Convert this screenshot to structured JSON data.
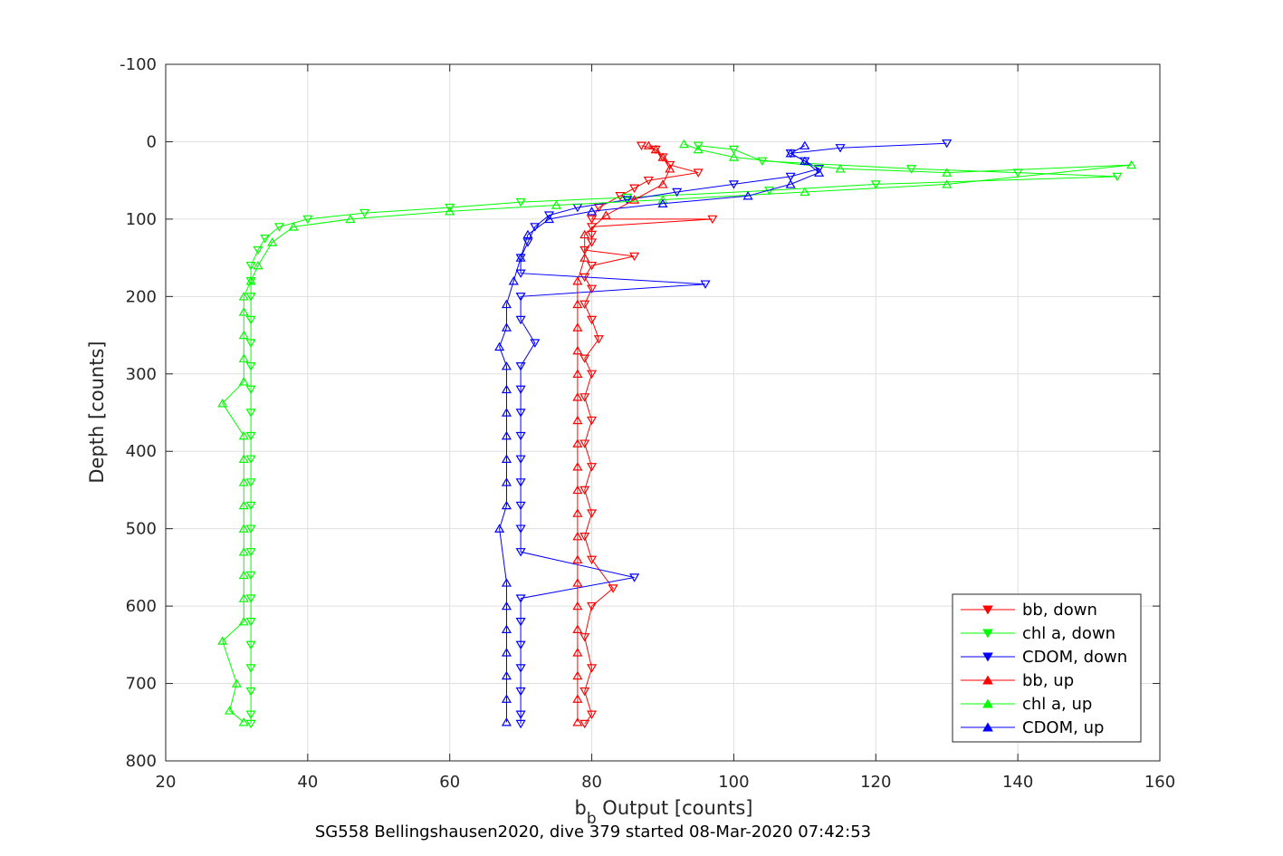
{
  "chart_data": {
    "type": "scatter",
    "xlabel_main": "b",
    "xlabel_sub": "b",
    "xlabel_rest": " Output [counts]",
    "ylabel": "Depth [counts]",
    "caption": "SG558 Bellingshausen2020, dive 379 started 08-Mar-2020 07:42:53",
    "xlim": [
      20,
      160
    ],
    "ylim": [
      -100,
      800
    ],
    "y_reversed": true,
    "xticks": [
      20,
      40,
      60,
      80,
      100,
      120,
      140,
      160
    ],
    "yticks": [
      -100,
      0,
      100,
      200,
      300,
      400,
      500,
      600,
      700,
      800
    ],
    "grid": true,
    "legend_position": "bottom-right",
    "series": [
      {
        "name": "bb, down",
        "color": "#ff0000",
        "marker": "triangle-down",
        "points": [
          [
            87,
            5
          ],
          [
            89,
            10
          ],
          [
            90,
            20
          ],
          [
            91,
            30
          ],
          [
            95,
            40
          ],
          [
            88,
            50
          ],
          [
            86,
            60
          ],
          [
            84,
            70
          ],
          [
            81,
            85
          ],
          [
            80,
            100
          ],
          [
            97,
            100
          ],
          [
            80,
            110
          ],
          [
            80,
            120
          ],
          [
            80,
            130
          ],
          [
            79,
            140
          ],
          [
            86,
            148
          ],
          [
            80,
            160
          ],
          [
            79,
            175
          ],
          [
            80,
            190
          ],
          [
            79,
            210
          ],
          [
            80,
            230
          ],
          [
            81,
            255
          ],
          [
            79,
            280
          ],
          [
            80,
            300
          ],
          [
            79,
            330
          ],
          [
            80,
            360
          ],
          [
            79,
            390
          ],
          [
            80,
            420
          ],
          [
            79,
            450
          ],
          [
            80,
            480
          ],
          [
            79,
            510
          ],
          [
            80,
            540
          ],
          [
            83,
            577
          ],
          [
            80,
            600
          ],
          [
            79,
            640
          ],
          [
            80,
            680
          ],
          [
            79,
            710
          ],
          [
            80,
            740
          ],
          [
            79,
            752
          ]
        ]
      },
      {
        "name": "chl a, down",
        "color": "#00ff00",
        "marker": "triangle-down",
        "points": [
          [
            95,
            5
          ],
          [
            100,
            10
          ],
          [
            104,
            25
          ],
          [
            125,
            35
          ],
          [
            140,
            40
          ],
          [
            154,
            45
          ],
          [
            120,
            55
          ],
          [
            105,
            63
          ],
          [
            85,
            72
          ],
          [
            70,
            78
          ],
          [
            60,
            85
          ],
          [
            48,
            92
          ],
          [
            40,
            100
          ],
          [
            36,
            110
          ],
          [
            34,
            125
          ],
          [
            33,
            140
          ],
          [
            32,
            160
          ],
          [
            32,
            180
          ],
          [
            32,
            200
          ],
          [
            32,
            230
          ],
          [
            32,
            260
          ],
          [
            32,
            290
          ],
          [
            32,
            320
          ],
          [
            32,
            350
          ],
          [
            32,
            380
          ],
          [
            32,
            410
          ],
          [
            32,
            440
          ],
          [
            32,
            470
          ],
          [
            32,
            500
          ],
          [
            32,
            530
          ],
          [
            32,
            560
          ],
          [
            32,
            590
          ],
          [
            32,
            620
          ],
          [
            32,
            650
          ],
          [
            32,
            680
          ],
          [
            32,
            710
          ],
          [
            32,
            740
          ],
          [
            32,
            752
          ]
        ]
      },
      {
        "name": "CDOM, down",
        "color": "#0000ff",
        "marker": "triangle-down",
        "points": [
          [
            130,
            2
          ],
          [
            115,
            8
          ],
          [
            108,
            15
          ],
          [
            110,
            25
          ],
          [
            112,
            35
          ],
          [
            108,
            45
          ],
          [
            100,
            55
          ],
          [
            92,
            65
          ],
          [
            85,
            75
          ],
          [
            78,
            85
          ],
          [
            74,
            95
          ],
          [
            72,
            110
          ],
          [
            71,
            130
          ],
          [
            70,
            150
          ],
          [
            70,
            170
          ],
          [
            96,
            184
          ],
          [
            70,
            200
          ],
          [
            70,
            230
          ],
          [
            72,
            260
          ],
          [
            70,
            290
          ],
          [
            70,
            320
          ],
          [
            70,
            350
          ],
          [
            70,
            380
          ],
          [
            70,
            410
          ],
          [
            70,
            440
          ],
          [
            70,
            470
          ],
          [
            70,
            500
          ],
          [
            70,
            530
          ],
          [
            86,
            563
          ],
          [
            70,
            590
          ],
          [
            70,
            620
          ],
          [
            70,
            650
          ],
          [
            70,
            680
          ],
          [
            70,
            710
          ],
          [
            70,
            740
          ],
          [
            70,
            752
          ]
        ]
      },
      {
        "name": "bb, up",
        "color": "#ff0000",
        "marker": "triangle-up",
        "points": [
          [
            78,
            750
          ],
          [
            78,
            720
          ],
          [
            78,
            690
          ],
          [
            78,
            660
          ],
          [
            78,
            630
          ],
          [
            78,
            600
          ],
          [
            78,
            570
          ],
          [
            78,
            540
          ],
          [
            78,
            510
          ],
          [
            78,
            480
          ],
          [
            78,
            450
          ],
          [
            78,
            420
          ],
          [
            78,
            390
          ],
          [
            78,
            360
          ],
          [
            78,
            330
          ],
          [
            78,
            300
          ],
          [
            78,
            270
          ],
          [
            78,
            240
          ],
          [
            78,
            210
          ],
          [
            78,
            180
          ],
          [
            79,
            150
          ],
          [
            79,
            120
          ],
          [
            82,
            95
          ],
          [
            86,
            75
          ],
          [
            90,
            55
          ],
          [
            91,
            35
          ],
          [
            90,
            20
          ],
          [
            89,
            10
          ],
          [
            88,
            5
          ]
        ]
      },
      {
        "name": "chl a, up",
        "color": "#00ff00",
        "marker": "triangle-up",
        "points": [
          [
            31,
            750
          ],
          [
            29,
            735
          ],
          [
            30,
            700
          ],
          [
            28,
            645
          ],
          [
            31,
            620
          ],
          [
            31,
            590
          ],
          [
            31,
            560
          ],
          [
            31,
            530
          ],
          [
            31,
            500
          ],
          [
            31,
            470
          ],
          [
            31,
            440
          ],
          [
            31,
            410
          ],
          [
            31,
            380
          ],
          [
            28,
            338
          ],
          [
            31,
            310
          ],
          [
            31,
            280
          ],
          [
            31,
            250
          ],
          [
            31,
            220
          ],
          [
            31,
            200
          ],
          [
            32,
            180
          ],
          [
            33,
            160
          ],
          [
            35,
            130
          ],
          [
            38,
            110
          ],
          [
            46,
            100
          ],
          [
            60,
            90
          ],
          [
            75,
            82
          ],
          [
            90,
            75
          ],
          [
            110,
            65
          ],
          [
            130,
            55
          ],
          [
            156,
            30
          ],
          [
            130,
            40
          ],
          [
            115,
            35
          ],
          [
            100,
            20
          ],
          [
            95,
            10
          ],
          [
            93,
            3
          ]
        ]
      },
      {
        "name": "CDOM, up",
        "color": "#0000ff",
        "marker": "triangle-up",
        "points": [
          [
            68,
            750
          ],
          [
            68,
            720
          ],
          [
            68,
            690
          ],
          [
            68,
            660
          ],
          [
            68,
            630
          ],
          [
            68,
            600
          ],
          [
            68,
            570
          ],
          [
            67,
            500
          ],
          [
            68,
            470
          ],
          [
            68,
            440
          ],
          [
            68,
            410
          ],
          [
            68,
            380
          ],
          [
            68,
            350
          ],
          [
            68,
            320
          ],
          [
            68,
            290
          ],
          [
            67,
            265
          ],
          [
            68,
            240
          ],
          [
            68,
            210
          ],
          [
            69,
            180
          ],
          [
            70,
            150
          ],
          [
            71,
            120
          ],
          [
            74,
            100
          ],
          [
            80,
            90
          ],
          [
            90,
            80
          ],
          [
            102,
            70
          ],
          [
            108,
            55
          ],
          [
            112,
            40
          ],
          [
            110,
            25
          ],
          [
            108,
            15
          ],
          [
            110,
            5
          ]
        ]
      }
    ]
  }
}
